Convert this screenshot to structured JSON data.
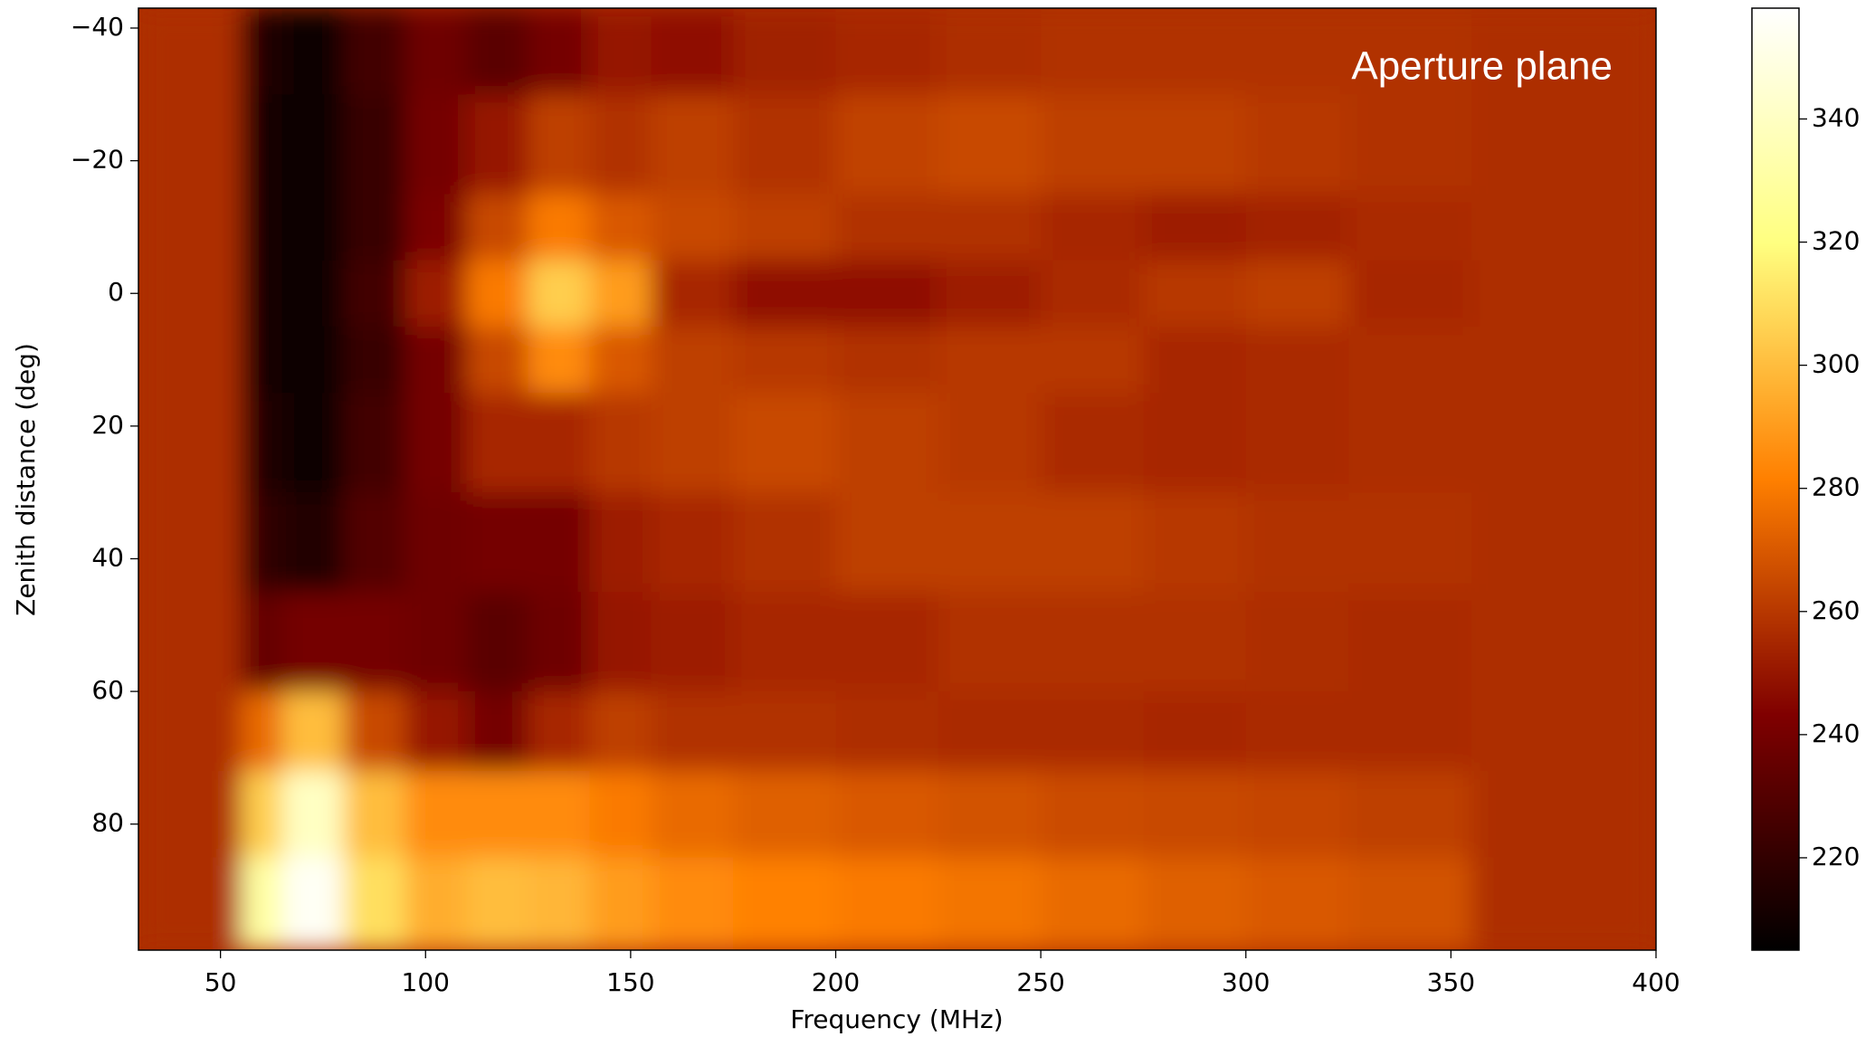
{
  "chart_data": {
    "type": "heatmap",
    "annotation": "Aperture plane",
    "xlabel": "Frequency (MHz)",
    "ylabel": "Zenith distance (deg)",
    "colormap": "afmhot",
    "xlim": [
      30,
      400
    ],
    "ylim": [
      -43,
      99
    ],
    "y_inverted": true,
    "xticks": [
      50,
      100,
      150,
      200,
      250,
      300,
      350,
      400
    ],
    "yticks": [
      {
        "value": -40,
        "label": "−40"
      },
      {
        "value": -20,
        "label": "−20"
      },
      0,
      20,
      40,
      60,
      80
    ],
    "xbins": [
      30,
      55,
      65,
      80,
      95,
      110,
      125,
      140,
      155,
      175,
      200,
      225,
      250,
      275,
      300,
      325,
      355,
      400
    ],
    "ybins": [
      -43,
      -30,
      -15,
      -5,
      5,
      15,
      30,
      45,
      60,
      72,
      85,
      99
    ],
    "values": [
      [
        257,
        215,
        208,
        225,
        238,
        232,
        240,
        250,
        248,
        253,
        255,
        257,
        258,
        258,
        258,
        258,
        257
      ],
      [
        257,
        212,
        207,
        222,
        240,
        250,
        262,
        258,
        262,
        258,
        263,
        265,
        262,
        262,
        260,
        258,
        257
      ],
      [
        257,
        212,
        207,
        222,
        242,
        265,
        280,
        270,
        265,
        262,
        258,
        258,
        255,
        252,
        254,
        256,
        257
      ],
      [
        257,
        212,
        207,
        225,
        252,
        280,
        305,
        290,
        255,
        248,
        248,
        252,
        256,
        260,
        262,
        255,
        257
      ],
      [
        257,
        212,
        207,
        222,
        240,
        265,
        285,
        270,
        262,
        260,
        258,
        260,
        260,
        255,
        256,
        257,
        257
      ],
      [
        257,
        215,
        210,
        225,
        240,
        255,
        255,
        260,
        262,
        265,
        262,
        260,
        256,
        255,
        256,
        257,
        257
      ],
      [
        257,
        220,
        215,
        230,
        238,
        240,
        240,
        252,
        255,
        258,
        262,
        262,
        262,
        260,
        258,
        258,
        257
      ],
      [
        257,
        235,
        240,
        240,
        238,
        232,
        238,
        250,
        252,
        255,
        255,
        258,
        258,
        258,
        257,
        256,
        257
      ],
      [
        257,
        275,
        300,
        265,
        250,
        240,
        255,
        262,
        258,
        258,
        257,
        256,
        256,
        255,
        256,
        256,
        257
      ],
      [
        257,
        305,
        340,
        300,
        285,
        285,
        285,
        280,
        275,
        272,
        270,
        268,
        266,
        265,
        264,
        262,
        257
      ],
      [
        257,
        330,
        355,
        310,
        295,
        300,
        298,
        290,
        285,
        282,
        280,
        278,
        275,
        272,
        270,
        268,
        257
      ]
    ],
    "colorbar": {
      "clim": [
        205,
        358
      ],
      "ticks": [
        220,
        240,
        260,
        280,
        300,
        320,
        340
      ]
    }
  }
}
